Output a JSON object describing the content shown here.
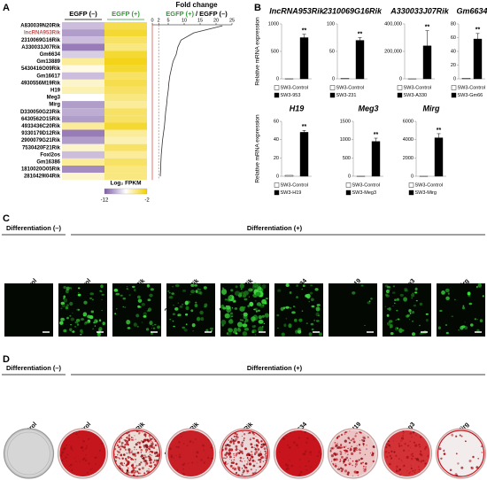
{
  "chart_data": [
    {
      "type": "heatmap",
      "rows": [
        "A830039N20Rik",
        "lncRNA953Rik",
        "2310069G16Rik",
        "A330033J07Rik",
        "Gm6634",
        "Gm13889",
        "5430416O09Rik",
        "Gm16617",
        "4930556M19Rik",
        "H19",
        "Meg3",
        "Mirg",
        "D330050G23Rik",
        "6430562O15Rik",
        "4933436C20Rik",
        "9330179D12Rik",
        "2900079G21Rik",
        "7530420F21Rik",
        "Foxl2os",
        "Gm16386",
        "1810020O05Rik",
        "2810429I04Rik"
      ],
      "columns": [
        "EGFP (–)",
        "EGFP (+)"
      ],
      "column_colors": [
        "#000000",
        "#2e9e2e"
      ],
      "values": [
        [
          -9,
          -3.5
        ],
        [
          -10,
          -3
        ],
        [
          -9,
          -4
        ],
        [
          -11,
          -4.5
        ],
        [
          -8.5,
          -3
        ],
        [
          -5,
          -2.5
        ],
        [
          -6.5,
          -3
        ],
        [
          -9,
          -4
        ],
        [
          -6,
          -3.5
        ],
        [
          -5.5,
          -4
        ],
        [
          -7,
          -4.5
        ],
        [
          -10,
          -5
        ],
        [
          -9.5,
          -4
        ],
        [
          -10,
          -4
        ],
        [
          -5,
          -3
        ],
        [
          -11,
          -5
        ],
        [
          -10,
          -5.5
        ],
        [
          -6,
          -4
        ],
        [
          -9,
          -5
        ],
        [
          -5,
          -4
        ],
        [
          -10.5,
          -4.5
        ],
        [
          -6,
          -4.5
        ]
      ],
      "highlight_index": 1,
      "highlight_color": "#c0504d",
      "legend_title": "Log₂ FPKM",
      "legend_ticks": [
        -12,
        -2
      ],
      "colors": [
        "#7d5ba6",
        "#ffffff",
        "#f2cf00"
      ]
    },
    {
      "type": "line",
      "title": "Fold change",
      "subtitle": [
        "EGFP (+)",
        "/ EGFP (–)"
      ],
      "subtitle_colors": [
        "#2e9e2e",
        "#000000"
      ],
      "values": [
        22,
        13,
        9,
        8,
        7.5,
        6.5,
        6,
        5.5,
        5.2,
        5,
        4.7,
        4.5,
        4.2,
        4,
        3.8,
        3.5,
        3.2,
        3,
        2.8,
        2.7,
        2.6,
        2.5
      ],
      "xlim": [
        0,
        25
      ],
      "xticks": [
        0,
        2,
        5,
        10,
        15,
        20,
        25
      ],
      "threshold": 2,
      "color": "#333333",
      "threshold_color": "#d9534f"
    },
    {
      "type": "bar",
      "title": "lncRNA953Rik",
      "ylim": [
        0,
        1000
      ],
      "yticks": [
        0,
        500,
        1000
      ],
      "annotation": "**",
      "series": [
        {
          "name": "SW3-Control",
          "color": "#ffffff",
          "values": [
            1
          ]
        },
        {
          "name": "SW3-953",
          "color": "#000000",
          "values": [
            750
          ],
          "errors": [
            60
          ]
        }
      ]
    },
    {
      "type": "bar",
      "title": "2310069G16Rik",
      "ylim": [
        0,
        100
      ],
      "yticks": [
        0,
        50,
        100
      ],
      "annotation": "**",
      "series": [
        {
          "name": "SW3-Control",
          "color": "#ffffff",
          "values": [
            1
          ]
        },
        {
          "name": "SW3-231",
          "color": "#000000",
          "values": [
            70
          ],
          "errors": [
            5
          ]
        }
      ]
    },
    {
      "type": "bar",
      "title": "A330033J07Rik",
      "ylim": [
        0,
        400000
      ],
      "yticks": [
        0,
        {
          "value": 200000,
          "label": "200,000"
        },
        {
          "value": 400000,
          "label": "400,000"
        }
      ],
      "annotation": "**",
      "series": [
        {
          "name": "SW3-Control",
          "color": "#ffffff",
          "values": [
            1
          ]
        },
        {
          "name": "SW3-A330",
          "color": "#000000",
          "values": [
            240000
          ],
          "errors": [
            110000
          ]
        }
      ]
    },
    {
      "type": "bar",
      "title": "Gm6634",
      "ylim": [
        0,
        80
      ],
      "yticks": [
        0,
        20,
        40,
        60,
        80
      ],
      "annotation": "**",
      "series": [
        {
          "name": "SW3-Control",
          "color": "#ffffff",
          "values": [
            1
          ]
        },
        {
          "name": "SW3-Gm66",
          "color": "#000000",
          "values": [
            58
          ],
          "errors": [
            8
          ]
        }
      ]
    },
    {
      "type": "bar",
      "title": "H19",
      "ylim": [
        0,
        60
      ],
      "yticks": [
        0,
        20,
        40,
        60
      ],
      "annotation": "**",
      "series": [
        {
          "name": "SW3-Control",
          "color": "#ffffff",
          "values": [
            1
          ]
        },
        {
          "name": "SW3-H19",
          "color": "#000000",
          "values": [
            48
          ],
          "errors": [
            2
          ]
        }
      ]
    },
    {
      "type": "bar",
      "title": "Meg3",
      "ylim": [
        0,
        1500
      ],
      "yticks": [
        0,
        500,
        1000,
        1500
      ],
      "annotation": "**",
      "series": [
        {
          "name": "SW3-Control",
          "color": "#ffffff",
          "values": [
            1
          ]
        },
        {
          "name": "SW3-Meg3",
          "color": "#000000",
          "values": [
            950
          ],
          "errors": [
            90
          ]
        }
      ]
    },
    {
      "type": "bar",
      "title": "Mirg",
      "ylim": [
        0,
        6000
      ],
      "yticks": [
        0,
        2000,
        4000,
        6000
      ],
      "annotation": "**",
      "series": [
        {
          "name": "SW3-Control",
          "color": "#ffffff",
          "values": [
            1
          ]
        },
        {
          "name": "SW3-Mirg",
          "color": "#000000",
          "values": [
            4200
          ],
          "errors": [
            450
          ]
        }
      ]
    }
  ],
  "figure": {
    "panel_labels": [
      "A",
      "B",
      "C",
      "D"
    ],
    "y_axis_label": "Relative mRNA expression",
    "groups": [
      "Differentiation (–)",
      "Differentiation (+)"
    ],
    "conditions": [
      "Control",
      "Control",
      "lncRNA953Rik",
      "2310069G16Rik",
      "A330033J07Rik",
      "Gm6634",
      "H19",
      "Meg3",
      "Mirg"
    ]
  }
}
